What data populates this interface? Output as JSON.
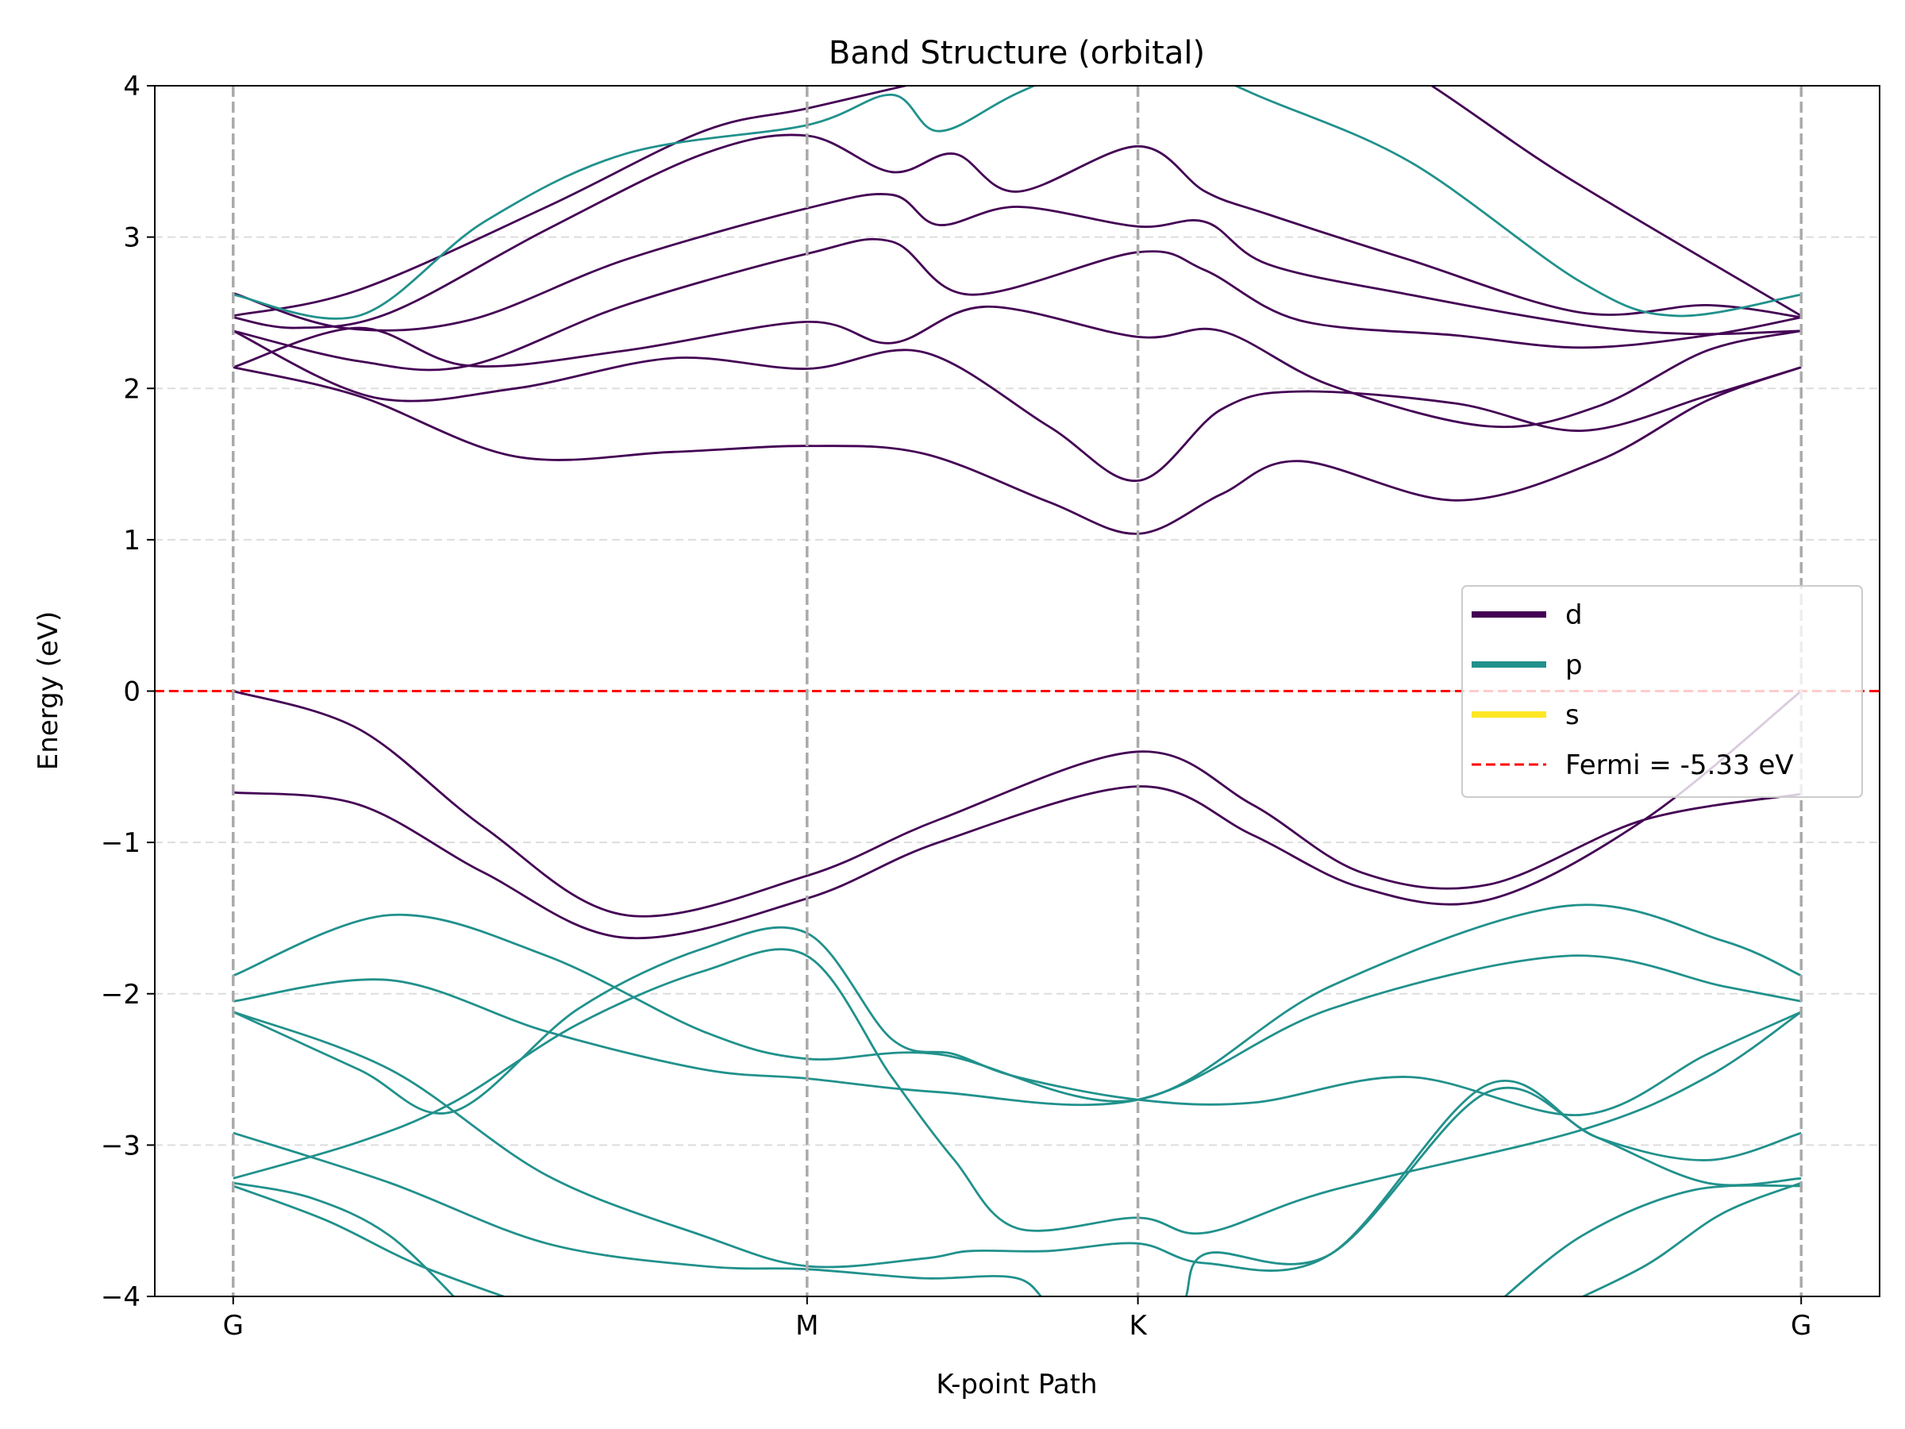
{
  "chart_data": {
    "type": "line",
    "title": "Band Structure (orbital)",
    "xlabel": "K-point Path",
    "ylabel": "Energy (eV)",
    "xlim": [
      -0.05,
      1.05
    ],
    "ylim": [
      -4,
      4
    ],
    "x_ticks": [
      {
        "label": "G",
        "x": 0.0
      },
      {
        "label": "M",
        "x": 0.366
      },
      {
        "label": "K",
        "x": 0.577
      },
      {
        "label": "G",
        "x": 1.0
      }
    ],
    "y_ticks": [
      {
        "value": 4,
        "label": "4"
      },
      {
        "value": 3,
        "label": "3"
      },
      {
        "value": 2,
        "label": "2"
      },
      {
        "value": 1,
        "label": "1"
      },
      {
        "value": 0,
        "label": "0"
      },
      {
        "value": -1,
        "label": "−1"
      },
      {
        "value": -2,
        "label": "−2"
      },
      {
        "value": -3,
        "label": "−3"
      },
      {
        "value": -4,
        "label": "−4"
      }
    ],
    "grid": "horizontal dashed",
    "legend_position": "center-right",
    "legend": [
      {
        "label": "d",
        "color": "#440154",
        "style": "solid"
      },
      {
        "label": "p",
        "color": "#21918c",
        "style": "solid"
      },
      {
        "label": "s",
        "color": "#fde725",
        "style": "solid"
      },
      {
        "label": "Fermi = -5.33 eV",
        "color": "#ff0000",
        "style": "dashed"
      }
    ],
    "fermi_level": 0,
    "series": [
      {
        "orbital": "d",
        "color": "#440154",
        "x": [
          0,
          0.08,
          0.2,
          0.3,
          0.366,
          0.45,
          0.52,
          0.577,
          0.65,
          0.73,
          0.85,
          1.0
        ],
        "y": [
          2.48,
          2.65,
          3.2,
          3.7,
          3.85,
          4.05,
          4.2,
          4.3,
          4.3,
          4.2,
          3.4,
          2.48
        ]
      },
      {
        "orbital": "d",
        "color": "#440154",
        "x": [
          0,
          0.04,
          0.1,
          0.2,
          0.3,
          0.366,
          0.42,
          0.46,
          0.5,
          0.577,
          0.62,
          0.66,
          0.75,
          0.86,
          0.94,
          1.0
        ],
        "y": [
          2.47,
          2.4,
          2.5,
          3.05,
          3.55,
          3.67,
          3.43,
          3.55,
          3.3,
          3.6,
          3.3,
          3.15,
          2.85,
          2.5,
          2.55,
          2.47
        ]
      },
      {
        "orbital": "d",
        "color": "#440154",
        "x": [
          0,
          0.07,
          0.15,
          0.25,
          0.366,
          0.42,
          0.45,
          0.5,
          0.577,
          0.62,
          0.66,
          0.75,
          0.86,
          0.93,
          1.0
        ],
        "y": [
          2.63,
          2.4,
          2.45,
          2.85,
          3.19,
          3.28,
          3.08,
          3.2,
          3.07,
          3.1,
          2.82,
          2.62,
          2.42,
          2.36,
          2.38
        ]
      },
      {
        "orbital": "d",
        "color": "#440154",
        "x": [
          0,
          0.08,
          0.15,
          0.25,
          0.366,
          0.42,
          0.47,
          0.577,
          0.62,
          0.68,
          0.78,
          0.86,
          0.94,
          1.0
        ],
        "y": [
          2.38,
          2.18,
          2.15,
          2.55,
          2.89,
          2.97,
          2.62,
          2.9,
          2.78,
          2.45,
          2.35,
          2.27,
          2.35,
          2.47
        ]
      },
      {
        "orbital": "d",
        "color": "#440154",
        "x": [
          0,
          0.08,
          0.15,
          0.25,
          0.366,
          0.42,
          0.48,
          0.577,
          0.63,
          0.7,
          0.8,
          0.87,
          0.94,
          1.0
        ],
        "y": [
          2.14,
          2.4,
          2.15,
          2.25,
          2.44,
          2.3,
          2.54,
          2.34,
          2.38,
          2.02,
          1.75,
          1.88,
          2.25,
          2.38
        ]
      },
      {
        "orbital": "d",
        "color": "#440154",
        "x": [
          0,
          0.09,
          0.18,
          0.28,
          0.366,
          0.44,
          0.52,
          0.577,
          0.63,
          0.68,
          0.78,
          0.86,
          0.94,
          1.0
        ],
        "y": [
          2.38,
          1.94,
          2.0,
          2.2,
          2.13,
          2.24,
          1.75,
          1.39,
          1.86,
          1.98,
          1.9,
          1.72,
          1.95,
          2.14
        ]
      },
      {
        "orbital": "d",
        "color": "#440154",
        "x": [
          0,
          0.08,
          0.18,
          0.28,
          0.366,
          0.44,
          0.52,
          0.577,
          0.63,
          0.68,
          0.78,
          0.87,
          0.94,
          1.0
        ],
        "y": [
          2.14,
          1.95,
          1.55,
          1.58,
          1.62,
          1.57,
          1.25,
          1.04,
          1.3,
          1.52,
          1.26,
          1.52,
          1.92,
          2.14
        ]
      },
      {
        "orbital": "d",
        "color": "#440154",
        "x": [
          0,
          0.08,
          0.16,
          0.25,
          0.366,
          0.45,
          0.577,
          0.65,
          0.72,
          0.8,
          0.9,
          1.0
        ],
        "y": [
          0.0,
          -0.25,
          -0.9,
          -1.48,
          -1.22,
          -0.85,
          -0.4,
          -0.75,
          -1.2,
          -1.28,
          -0.85,
          -0.68
        ]
      },
      {
        "orbital": "d",
        "color": "#440154",
        "x": [
          0,
          0.08,
          0.16,
          0.25,
          0.366,
          0.45,
          0.577,
          0.65,
          0.72,
          0.8,
          0.9,
          1.0
        ],
        "y": [
          -0.67,
          -0.75,
          -1.2,
          -1.63,
          -1.37,
          -1.0,
          -0.63,
          -0.95,
          -1.3,
          -1.38,
          -0.85,
          0.0
        ]
      },
      {
        "orbital": "p",
        "color": "#21918c",
        "x": [
          0,
          0.08,
          0.16,
          0.25,
          0.366,
          0.42,
          0.45,
          0.5,
          0.577
        ],
        "y": [
          2.62,
          2.48,
          3.1,
          3.55,
          3.74,
          3.94,
          3.7,
          3.95,
          4.3
        ]
      },
      {
        "orbital": "p",
        "color": "#21918c",
        "x": [
          0.577,
          0.65,
          0.75,
          0.86,
          0.92,
          1.0
        ],
        "y": [
          4.3,
          3.95,
          3.5,
          2.7,
          2.48,
          2.62
        ]
      },
      {
        "orbital": "p",
        "color": "#21918c",
        "x": [
          0,
          0.1,
          0.2,
          0.3,
          0.366,
          0.45,
          0.577,
          0.7,
          0.85,
          0.95,
          1.0
        ],
        "y": [
          -1.88,
          -1.48,
          -1.75,
          -2.25,
          -2.43,
          -2.4,
          -2.7,
          -1.95,
          -1.42,
          -1.65,
          -1.88
        ]
      },
      {
        "orbital": "p",
        "color": "#21918c",
        "x": [
          0,
          0.1,
          0.2,
          0.3,
          0.366,
          0.45,
          0.577,
          0.7,
          0.85,
          0.95,
          1.0
        ],
        "y": [
          -2.05,
          -1.91,
          -2.25,
          -2.5,
          -2.56,
          -2.65,
          -2.7,
          -2.1,
          -1.75,
          -1.95,
          -2.05
        ]
      },
      {
        "orbital": "p",
        "color": "#21918c",
        "x": [
          0,
          0.08,
          0.14,
          0.22,
          0.3,
          0.366,
          0.42,
          0.46,
          0.5,
          0.577,
          0.65,
          0.75,
          0.86,
          0.94,
          1.0
        ],
        "y": [
          -2.12,
          -2.5,
          -2.78,
          -2.1,
          -1.7,
          -1.6,
          -2.3,
          -2.4,
          -2.55,
          -2.7,
          -2.72,
          -2.55,
          -2.8,
          -2.4,
          -2.12
        ]
      },
      {
        "orbital": "p",
        "color": "#21918c",
        "x": [
          0,
          0.08,
          0.14,
          0.22,
          0.3,
          0.366,
          0.42,
          0.46,
          0.5,
          0.577,
          0.62,
          0.7,
          0.86,
          0.94,
          1.0
        ],
        "y": [
          -3.22,
          -2.98,
          -2.72,
          -2.2,
          -1.85,
          -1.75,
          -2.55,
          -3.1,
          -3.55,
          -3.48,
          -3.58,
          -3.3,
          -2.9,
          -2.55,
          -2.12
        ]
      },
      {
        "orbital": "p",
        "color": "#21918c",
        "x": [
          0,
          0.1,
          0.2,
          0.3,
          0.366,
          0.44,
          0.47,
          0.52,
          0.577,
          0.62,
          0.7,
          0.8,
          0.87,
          0.94,
          1.0
        ],
        "y": [
          -2.12,
          -2.5,
          -3.2,
          -3.6,
          -3.8,
          -3.75,
          -3.7,
          -3.7,
          -3.65,
          -3.78,
          -3.72,
          -2.6,
          -2.95,
          -3.1,
          -2.92
        ]
      },
      {
        "orbital": "p",
        "color": "#21918c",
        "x": [
          0,
          0.1,
          0.2,
          0.3,
          0.366,
          0.44,
          0.5,
          0.53,
          0.6,
          0.62,
          0.7,
          0.8,
          0.87,
          0.94,
          1.0
        ],
        "y": [
          -2.92,
          -3.25,
          -3.65,
          -3.8,
          -3.82,
          -3.88,
          -3.88,
          -4.1,
          -4.1,
          -3.72,
          -3.72,
          -2.65,
          -2.95,
          -3.25,
          -3.22
        ]
      },
      {
        "orbital": "p",
        "color": "#21918c",
        "x": [
          0,
          0.05,
          0.1,
          0.15
        ],
        "y": [
          -3.25,
          -3.35,
          -3.6,
          -4.1
        ]
      },
      {
        "orbital": "p",
        "color": "#21918c",
        "x": [
          0,
          0.06,
          0.12,
          0.2
        ],
        "y": [
          -3.27,
          -3.5,
          -3.8,
          -4.1
        ]
      },
      {
        "orbital": "p",
        "color": "#21918c",
        "x": [
          0.8,
          0.86,
          0.93,
          1.0
        ],
        "y": [
          -4.1,
          -3.6,
          -3.3,
          -3.27
        ]
      },
      {
        "orbital": "p",
        "color": "#21918c",
        "x": [
          0.84,
          0.9,
          0.95,
          1.0
        ],
        "y": [
          -4.1,
          -3.8,
          -3.45,
          -3.25
        ]
      }
    ]
  }
}
